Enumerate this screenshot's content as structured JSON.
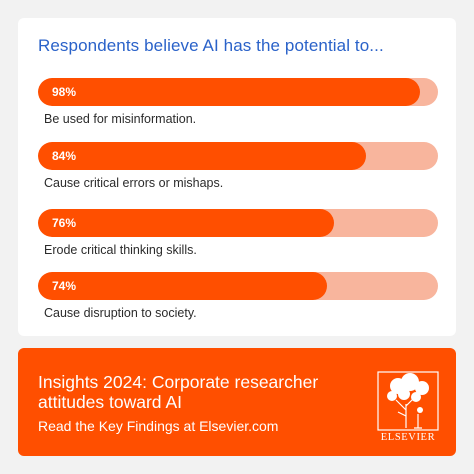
{
  "colors": {
    "accent": "#ff4f00",
    "track": "#f8b59d",
    "title": "#2a62c9",
    "background": "#f2f2f2"
  },
  "chart_data": {
    "type": "bar",
    "orientation": "horizontal",
    "title": "Respondents believe AI has the potential to...",
    "categories": [
      "Be used for misinformation.",
      "Cause critical errors or mishaps.",
      "Erode critical thinking skills.",
      "Cause disruption to society."
    ],
    "values": [
      98,
      84,
      76,
      74
    ],
    "value_labels": [
      "98%",
      "84%",
      "76%",
      "74%"
    ],
    "unit": "%",
    "xlim": [
      0,
      100
    ],
    "grid": false
  },
  "banner": {
    "title": "Insights 2024: Corporate researcher attitudes toward AI",
    "link": "Read the Key Findings at Elsevier.com",
    "logo_text": "ELSEVIER",
    "logo_icon": "elsevier-tree-icon"
  }
}
